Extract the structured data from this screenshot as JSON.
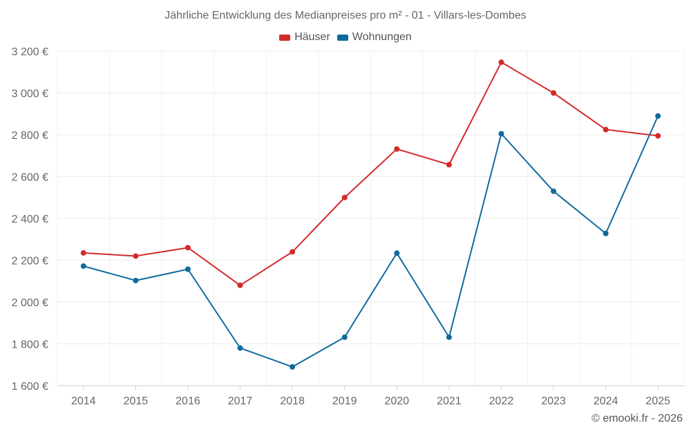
{
  "chart_data": {
    "type": "line",
    "title": "Jährliche Entwicklung des Medianpreises pro m² - 01 - Villars-les-Dombes",
    "xlabel": "",
    "ylabel": "",
    "categories": [
      "2014",
      "2015",
      "2016",
      "2017",
      "2018",
      "2019",
      "2020",
      "2021",
      "2022",
      "2023",
      "2024",
      "2025"
    ],
    "ylim": [
      1600,
      3200
    ],
    "yticks": [
      1600,
      1800,
      2000,
      2200,
      2400,
      2600,
      2800,
      3000,
      3200
    ],
    "ytick_labels": [
      "1 600 €",
      "1 800 €",
      "2 000 €",
      "2 200 €",
      "2 400 €",
      "2 600 €",
      "2 800 €",
      "3 000 €",
      "3 200 €"
    ],
    "legend_position": "top-center",
    "grid": true,
    "series": [
      {
        "name": "Häuser",
        "color": "#d42a2a",
        "values": [
          2235,
          2220,
          2260,
          2080,
          2240,
          2500,
          2732,
          2657,
          3147,
          3000,
          2825,
          2795
        ]
      },
      {
        "name": "Wohnungen",
        "color": "#0f6a9c",
        "values": [
          2172,
          2103,
          2157,
          1780,
          1690,
          1832,
          2234,
          1832,
          2805,
          2530,
          2328,
          2890
        ]
      }
    ]
  },
  "credit": "© emooki.fr - 2026"
}
